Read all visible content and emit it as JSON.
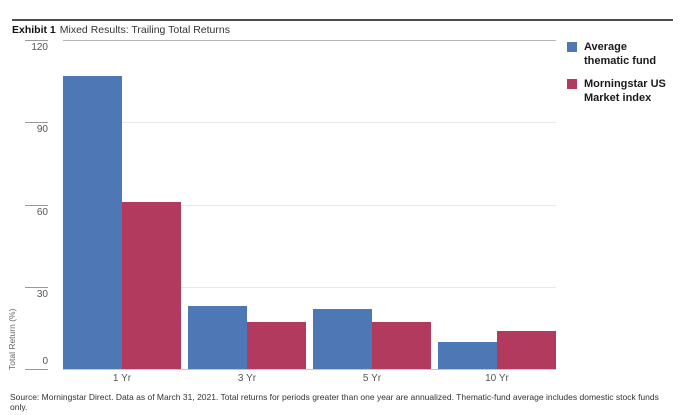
{
  "exhibit": {
    "label": "Exhibit 1",
    "title": "Mixed Results: Trailing Total Returns"
  },
  "source_note": "Source: Morningstar Direct. Data as of March 31, 2021. Total returns for periods greater than one year are annualized. Thematic-fund average includes domestic stock funds only.",
  "chart_data": {
    "type": "bar",
    "categories": [
      "1 Yr",
      "3 Yr",
      "5 Yr",
      "10 Yr"
    ],
    "series": [
      {
        "name": "Average thematic fund",
        "color": "#4d78b5",
        "values": [
          107,
          23,
          22,
          10
        ]
      },
      {
        "name": "Morningstar US Market index",
        "color": "#b23a5f",
        "values": [
          61,
          17,
          17,
          14
        ]
      }
    ],
    "title": "Mixed Results: Trailing Total Returns",
    "xlabel": "",
    "ylabel": "Total Return (%)",
    "ylim": [
      0,
      120
    ],
    "yticks": [
      0,
      30,
      60,
      90,
      120
    ],
    "grid": true,
    "legend_position": "top-right"
  },
  "colors": {
    "series_blue": "#4d78b5",
    "series_red": "#b23a5f",
    "gridline": "#e8e8e8",
    "gridline_top": "#b5b5b5",
    "baseline": "#c6c6c6",
    "tick": "#999999",
    "top_rule": "#4d4d4d"
  }
}
